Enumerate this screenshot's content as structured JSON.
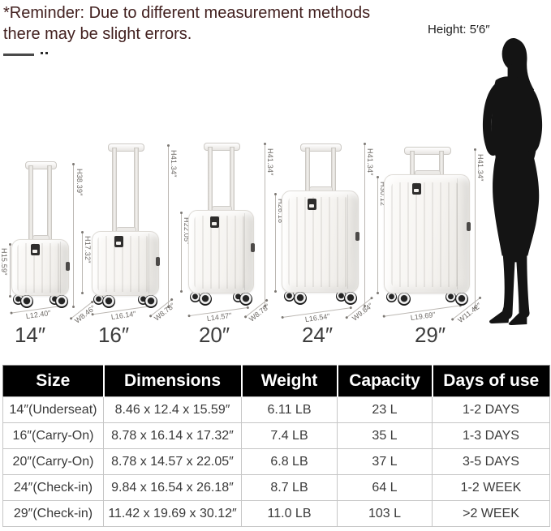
{
  "reminder": {
    "line1": "*Reminder: Due to different measurement methods",
    "line2": "there may be slight errors."
  },
  "height_note": "Height: 5′6″",
  "cases": [
    {
      "size": "14″",
      "body_height": "H15.59″",
      "extended_height": "H38.39″",
      "length": "L12.40″",
      "width": "W8.46″"
    },
    {
      "size": "16″",
      "body_height": "H17.32″",
      "extended_height": "H41.34″",
      "length": "L16.14″",
      "width": "W8.78″"
    },
    {
      "size": "20″",
      "body_height": "H22.05″",
      "extended_height": "H41.34″",
      "length": "L14.57″",
      "width": "W8.78″"
    },
    {
      "size": "24″",
      "body_height": "H26.18″",
      "extended_height": "H41.34″",
      "length": "L16.54″",
      "width": "W9.84″"
    },
    {
      "size": "29″",
      "body_height": "H30.12″",
      "extended_height": "H41.34″",
      "length": "L19.69″",
      "width": "W11.42″"
    }
  ],
  "table": {
    "headers": [
      "Size",
      "Dimensions",
      "Weight",
      "Capacity",
      "Days of use"
    ],
    "rows": [
      [
        "14″(Underseat)",
        "8.46 x 12.4 x 15.59″",
        "6.11 LB",
        "23 L",
        "1-2 DAYS"
      ],
      [
        "16″(Carry-On)",
        "8.78 x 16.14 x 17.32″",
        "7.4 LB",
        "35 L",
        "1-3 DAYS"
      ],
      [
        "20″(Carry-On)",
        "8.78 x 14.57 x 22.05″",
        "6.8 LB",
        "37 L",
        "3-5 DAYS"
      ],
      [
        "24″(Check-in)",
        "9.84 x 16.54 x 26.18″",
        "8.7 LB",
        "64 L",
        "1-2 WEEK"
      ],
      [
        "29″(Check-in)",
        "11.42 x 19.69 x 30.12″",
        "11.0 LB",
        "103 L",
        ">2 WEEK"
      ]
    ]
  },
  "colors": {
    "reminder_text": "#42201f",
    "table_header_bg": "#000000",
    "table_header_text": "#ffffff",
    "silhouette": "#141414"
  }
}
